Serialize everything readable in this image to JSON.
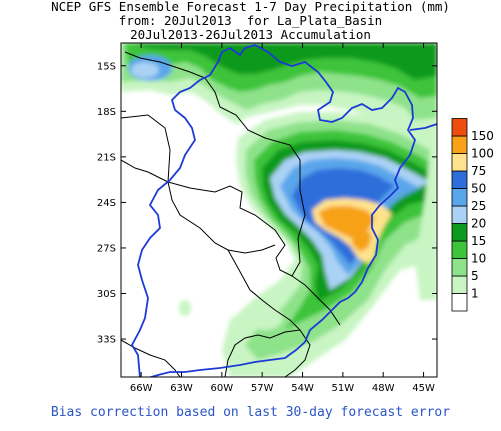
{
  "title": {
    "line1": "NCEP GFS Ensemble Forecast 1-7 Day Precipitation (mm)",
    "line2": "from: 20Jul2013  for La_Plata_Basin",
    "line3": "20Jul2013-26Jul2013 Accumulation"
  },
  "footer": "Bias correction based on last 30-day forecast error",
  "axes": {
    "lat_labels": [
      "15S",
      "18S",
      "21S",
      "24S",
      "27S",
      "30S",
      "33S"
    ],
    "lat_values": [
      -15,
      -18,
      -21,
      -24,
      -27,
      -30,
      -33
    ],
    "lon_labels": [
      "66W",
      "63W",
      "60W",
      "57W",
      "54W",
      "51W",
      "48W",
      "45W"
    ],
    "lon_values": [
      -66,
      -63,
      -60,
      -57,
      -54,
      -51,
      -48,
      -45
    ],
    "lon_range": [
      -67.5,
      -44.0
    ],
    "lat_range": [
      -35.5,
      -13.5
    ]
  },
  "legend": {
    "levels": [
      "1",
      "5",
      "10",
      "15",
      "20",
      "25",
      "50",
      "75",
      "100",
      "150"
    ],
    "colors": [
      "#ffffff",
      "#c8f5c3",
      "#8ee28a",
      "#3ec43b",
      "#0e9a1e",
      "#aad2f5",
      "#5aa6ea",
      "#2d6edb",
      "#ffe38c",
      "#f7a218",
      "#ee4d10"
    ]
  },
  "colors": {
    "basin_outline": "#1c3bd6",
    "borders": "#000000",
    "frame": "#000000",
    "footer_text": "#2a56c6"
  }
}
